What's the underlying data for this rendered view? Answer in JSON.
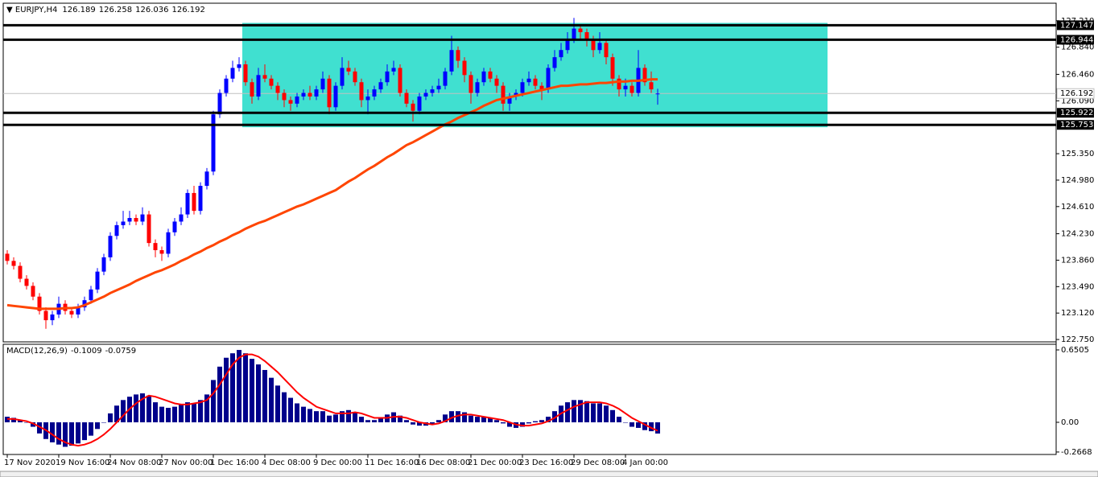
{
  "chart_data": [
    {
      "type": "candlestick",
      "symbol": "EURJPY,H4",
      "up_color": "#0000ff",
      "down_color": "#ff0000",
      "categories": [
        "17 Nov 2020",
        null,
        null,
        null,
        null,
        null,
        null,
        null,
        "19 Nov 16:00",
        null,
        null,
        null,
        null,
        null,
        null,
        null,
        "24 Nov 08:00",
        null,
        null,
        null,
        null,
        null,
        null,
        null,
        "27 Nov 00:00",
        null,
        null,
        null,
        null,
        null,
        null,
        null,
        "1 Dec 16:00",
        null,
        null,
        null,
        null,
        null,
        null,
        null,
        "4 Dec 08:00",
        null,
        null,
        null,
        null,
        null,
        null,
        null,
        "9 Dec 00:00",
        null,
        null,
        null,
        null,
        null,
        null,
        null,
        "11 Dec 16:00",
        null,
        null,
        null,
        null,
        null,
        null,
        null,
        "16 Dec 08:00",
        null,
        null,
        null,
        null,
        null,
        null,
        null,
        "21 Dec 00:00",
        null,
        null,
        null,
        null,
        null,
        null,
        null,
        "23 Dec 16:00",
        null,
        null,
        null,
        null,
        null,
        null,
        null,
        "29 Dec 08:00",
        null,
        null,
        null,
        null,
        null,
        null,
        null,
        "4 Jan 00:00",
        null,
        null,
        null,
        null,
        null
      ],
      "open": [
        123.95,
        123.85,
        123.78,
        123.6,
        123.5,
        123.35,
        123.15,
        123.02,
        123.1,
        123.25,
        123.15,
        123.1,
        123.2,
        123.3,
        123.45,
        123.7,
        123.9,
        124.2,
        124.35,
        124.4,
        124.45,
        124.4,
        124.5,
        124.1,
        124.0,
        123.95,
        124.25,
        124.4,
        124.5,
        124.8,
        124.55,
        124.9,
        125.1,
        125.9,
        126.2,
        126.4,
        126.55,
        126.6,
        126.35,
        126.15,
        126.45,
        126.4,
        126.3,
        126.2,
        126.1,
        126.05,
        126.15,
        126.2,
        126.15,
        126.25,
        126.4,
        126.0,
        126.3,
        126.55,
        126.5,
        126.35,
        126.1,
        126.15,
        126.25,
        126.35,
        126.5,
        126.55,
        126.2,
        126.05,
        125.95,
        126.15,
        126.2,
        126.25,
        126.3,
        126.5,
        126.8,
        126.65,
        126.45,
        126.2,
        126.35,
        126.5,
        126.4,
        126.3,
        126.05,
        126.15,
        126.2,
        126.35,
        126.4,
        126.3,
        126.25,
        126.55,
        126.7,
        126.8,
        126.95,
        127.1,
        127.05,
        126.95,
        126.8,
        126.9,
        126.7,
        126.4,
        126.25,
        126.3,
        126.2,
        126.55,
        126.35,
        126.189
      ],
      "high": [
        124.0,
        123.9,
        123.83,
        123.65,
        123.55,
        123.4,
        123.2,
        123.15,
        123.35,
        123.3,
        123.2,
        123.25,
        123.35,
        123.5,
        123.75,
        123.95,
        124.25,
        124.4,
        124.55,
        124.55,
        124.5,
        124.6,
        124.55,
        124.15,
        124.05,
        124.3,
        124.45,
        124.6,
        124.85,
        124.9,
        124.95,
        125.15,
        125.95,
        126.25,
        126.45,
        126.65,
        126.7,
        126.65,
        126.4,
        126.55,
        126.6,
        126.45,
        126.35,
        126.25,
        126.15,
        126.2,
        126.25,
        126.3,
        126.3,
        126.5,
        126.45,
        126.35,
        126.7,
        126.65,
        126.55,
        126.4,
        126.25,
        126.3,
        126.4,
        126.6,
        126.65,
        126.6,
        126.25,
        126.1,
        126.2,
        126.25,
        126.3,
        126.4,
        126.55,
        127.0,
        126.85,
        126.7,
        126.5,
        126.4,
        126.55,
        126.55,
        126.45,
        126.35,
        126.2,
        126.25,
        126.4,
        126.5,
        126.45,
        126.35,
        126.6,
        126.8,
        126.9,
        127.05,
        127.25,
        127.15,
        127.1,
        127.0,
        127.05,
        126.95,
        126.75,
        126.45,
        126.4,
        126.35,
        126.8,
        126.6,
        126.5,
        126.258
      ],
      "low": [
        123.8,
        123.73,
        123.55,
        123.45,
        123.3,
        123.1,
        122.9,
        122.95,
        123.05,
        123.1,
        123.05,
        123.05,
        123.15,
        123.25,
        123.4,
        123.65,
        123.85,
        124.15,
        124.3,
        124.35,
        124.35,
        124.35,
        124.05,
        123.9,
        123.85,
        123.9,
        124.2,
        124.35,
        124.45,
        124.5,
        124.5,
        124.85,
        125.05,
        125.85,
        126.15,
        126.35,
        126.5,
        126.3,
        126.05,
        126.1,
        126.35,
        126.25,
        126.1,
        126.0,
        125.95,
        126.0,
        126.1,
        126.1,
        126.1,
        126.2,
        125.9,
        125.95,
        126.25,
        126.45,
        126.3,
        126.0,
        125.9,
        126.1,
        126.2,
        126.3,
        126.45,
        126.15,
        126.0,
        125.8,
        125.9,
        126.1,
        126.15,
        126.2,
        126.25,
        126.45,
        126.55,
        126.35,
        126.05,
        126.15,
        126.3,
        126.35,
        126.2,
        125.95,
        125.95,
        126.1,
        126.15,
        126.3,
        126.25,
        126.1,
        126.2,
        126.5,
        126.65,
        126.75,
        126.9,
        126.95,
        126.85,
        126.7,
        126.75,
        126.6,
        126.3,
        126.15,
        126.15,
        126.15,
        126.15,
        126.3,
        126.2,
        126.036
      ],
      "close": [
        123.85,
        123.78,
        123.6,
        123.5,
        123.35,
        123.15,
        123.02,
        123.1,
        123.25,
        123.15,
        123.1,
        123.2,
        123.3,
        123.45,
        123.7,
        123.9,
        124.2,
        124.35,
        124.4,
        124.45,
        124.4,
        124.5,
        124.1,
        124.0,
        123.95,
        124.25,
        124.4,
        124.5,
        124.8,
        124.55,
        124.9,
        125.1,
        125.9,
        126.2,
        126.4,
        126.55,
        126.6,
        126.35,
        126.15,
        126.45,
        126.4,
        126.3,
        126.2,
        126.1,
        126.05,
        126.15,
        126.2,
        126.15,
        126.25,
        126.4,
        126.0,
        126.3,
        126.55,
        126.5,
        126.35,
        126.1,
        126.15,
        126.25,
        126.35,
        126.5,
        126.55,
        126.2,
        126.05,
        125.95,
        126.15,
        126.2,
        126.25,
        126.3,
        126.5,
        126.8,
        126.65,
        126.45,
        126.2,
        126.35,
        126.5,
        126.4,
        126.3,
        126.05,
        126.15,
        126.2,
        126.35,
        126.4,
        126.3,
        126.25,
        126.55,
        126.7,
        126.8,
        126.95,
        127.1,
        127.05,
        126.95,
        126.8,
        126.9,
        126.7,
        126.4,
        126.25,
        126.3,
        126.2,
        126.55,
        126.35,
        126.25,
        126.192
      ],
      "ma": {
        "color": "#ff4500",
        "values": [
          123.23,
          123.22,
          123.21,
          123.2,
          123.19,
          123.18,
          123.18,
          123.18,
          123.18,
          123.19,
          123.19,
          123.2,
          123.23,
          123.27,
          123.31,
          123.35,
          123.4,
          123.44,
          123.48,
          123.52,
          123.57,
          123.61,
          123.65,
          123.69,
          123.72,
          123.76,
          123.8,
          123.85,
          123.89,
          123.94,
          123.98,
          124.03,
          124.07,
          124.12,
          124.16,
          124.21,
          124.25,
          124.3,
          124.34,
          124.38,
          124.41,
          124.45,
          124.49,
          124.53,
          124.57,
          124.61,
          124.64,
          124.68,
          124.72,
          124.76,
          124.8,
          124.84,
          124.9,
          124.96,
          125.01,
          125.07,
          125.13,
          125.18,
          125.24,
          125.3,
          125.35,
          125.41,
          125.47,
          125.51,
          125.56,
          125.61,
          125.66,
          125.71,
          125.76,
          125.8,
          125.85,
          125.89,
          125.93,
          125.97,
          126.02,
          126.06,
          126.1,
          126.12,
          126.14,
          126.16,
          126.18,
          126.2,
          126.22,
          126.24,
          126.26,
          126.28,
          126.3,
          126.3,
          126.31,
          126.32,
          126.32,
          126.33,
          126.34,
          126.34,
          126.35,
          126.36,
          126.36,
          126.37,
          126.37,
          126.38,
          126.39,
          126.39
        ]
      },
      "zone": {
        "top": 127.18,
        "bottom": 125.72,
        "color": "#40e0d0"
      },
      "levels": [
        127.147,
        126.944,
        125.922,
        125.753
      ],
      "ylim": [
        122.717,
        127.444
      ],
      "yticks": [
        {
          "value": 127.21,
          "label": "127.210"
        },
        {
          "value": 126.84,
          "label": "126.840"
        },
        {
          "value": 126.46,
          "label": "126.460"
        },
        {
          "value": 126.09,
          "label": "126.090"
        },
        {
          "value": 125.35,
          "label": "125.350"
        },
        {
          "value": 124.98,
          "label": "124.980"
        },
        {
          "value": 124.61,
          "label": "124.610"
        },
        {
          "value": 124.23,
          "label": "124.230"
        },
        {
          "value": 123.86,
          "label": "123.860"
        },
        {
          "value": 123.49,
          "label": "123.490"
        },
        {
          "value": 123.12,
          "label": "123.120"
        },
        {
          "value": 122.75,
          "label": "122.750"
        }
      ]
    },
    {
      "type": "macd",
      "title": "MACD(12,26,9)",
      "series": [
        {
          "color": "#00008b",
          "values": [
            0.05,
            0.04,
            0.02,
            0.0,
            -0.04,
            -0.1,
            -0.15,
            -0.18,
            -0.2,
            -0.22,
            -0.21,
            -0.19,
            -0.16,
            -0.12,
            -0.06,
            0.0,
            0.08,
            0.15,
            0.2,
            0.23,
            0.25,
            0.26,
            0.24,
            0.18,
            0.14,
            0.13,
            0.14,
            0.16,
            0.18,
            0.17,
            0.2,
            0.25,
            0.38,
            0.5,
            0.58,
            0.62,
            0.65,
            0.62,
            0.57,
            0.52,
            0.47,
            0.4,
            0.33,
            0.27,
            0.22,
            0.17,
            0.14,
            0.12,
            0.1,
            0.1,
            0.06,
            0.07,
            0.1,
            0.11,
            0.09,
            0.05,
            0.02,
            0.02,
            0.04,
            0.07,
            0.09,
            0.06,
            0.02,
            -0.02,
            -0.03,
            -0.03,
            -0.02,
            0.02,
            0.07,
            0.1,
            0.1,
            0.09,
            0.06,
            0.05,
            0.05,
            0.04,
            0.02,
            -0.01,
            -0.04,
            -0.05,
            -0.04,
            -0.01,
            0.01,
            0.02,
            0.05,
            0.1,
            0.15,
            0.18,
            0.2,
            0.2,
            0.19,
            0.17,
            0.17,
            0.15,
            0.11,
            0.05,
            0.0,
            -0.04,
            -0.05,
            -0.07,
            -0.08,
            -0.1009
          ]
        },
        {
          "color": "#ff0000",
          "values": [
            0.03,
            0.03,
            0.02,
            0.01,
            -0.01,
            -0.04,
            -0.07,
            -0.11,
            -0.15,
            -0.18,
            -0.2,
            -0.21,
            -0.2,
            -0.18,
            -0.15,
            -0.11,
            -0.06,
            0.0,
            0.06,
            0.12,
            0.17,
            0.21,
            0.24,
            0.23,
            0.21,
            0.19,
            0.17,
            0.16,
            0.16,
            0.17,
            0.18,
            0.2,
            0.26,
            0.34,
            0.43,
            0.52,
            0.58,
            0.61,
            0.61,
            0.59,
            0.55,
            0.5,
            0.45,
            0.39,
            0.33,
            0.27,
            0.22,
            0.18,
            0.14,
            0.12,
            0.1,
            0.08,
            0.08,
            0.08,
            0.09,
            0.08,
            0.06,
            0.04,
            0.04,
            0.04,
            0.05,
            0.05,
            0.04,
            0.02,
            0.0,
            -0.01,
            -0.02,
            -0.01,
            0.01,
            0.04,
            0.06,
            0.07,
            0.07,
            0.06,
            0.05,
            0.04,
            0.03,
            0.02,
            0.0,
            -0.02,
            -0.03,
            -0.03,
            -0.02,
            -0.01,
            0.01,
            0.04,
            0.08,
            0.11,
            0.14,
            0.16,
            0.18,
            0.18,
            0.18,
            0.17,
            0.15,
            0.12,
            0.08,
            0.04,
            0.01,
            -0.02,
            -0.05,
            -0.0759
          ]
        }
      ],
      "ylim": [
        -0.289,
        0.701
      ],
      "yticks": [
        0.6505,
        {
          "value": 0,
          "label": "0.00"
        },
        -0.2668
      ]
    }
  ]
}
